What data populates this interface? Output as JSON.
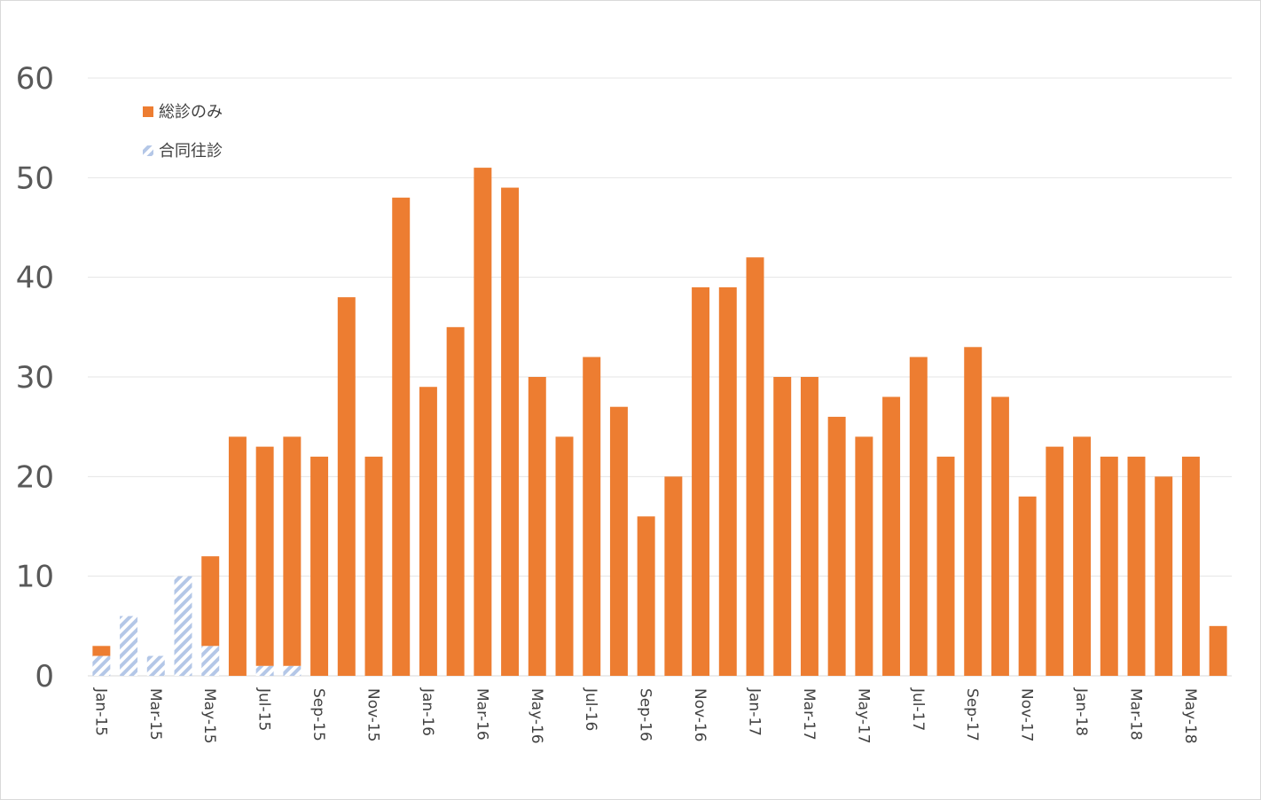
{
  "chart_data": {
    "type": "bar",
    "stacked": true,
    "title": "",
    "xlabel": "",
    "ylabel": "",
    "ylim": [
      0,
      60
    ],
    "yticks": [
      0,
      10,
      20,
      30,
      40,
      50,
      60
    ],
    "grid": true,
    "legend_position": "top-left",
    "categories": [
      "Jan-15",
      "Feb-15",
      "Mar-15",
      "Apr-15",
      "May-15",
      "Jun-15",
      "Jul-15",
      "Aug-15",
      "Sep-15",
      "Oct-15",
      "Nov-15",
      "Dec-15",
      "Jan-16",
      "Feb-16",
      "Mar-16",
      "Apr-16",
      "May-16",
      "Jun-16",
      "Jul-16",
      "Aug-16",
      "Sep-16",
      "Oct-16",
      "Nov-16",
      "Dec-16",
      "Jan-17",
      "Feb-17",
      "Mar-17",
      "Apr-17",
      "May-17",
      "Jun-17",
      "Jul-17",
      "Aug-17",
      "Sep-17",
      "Oct-17",
      "Nov-17",
      "Dec-17",
      "Jan-18",
      "Feb-18",
      "Mar-18",
      "Apr-18",
      "May-18",
      "Jun-18"
    ],
    "tick_labels": [
      "Jan-15",
      "",
      "Mar-15",
      "",
      "May-15",
      "",
      "Jul-15",
      "",
      "Sep-15",
      "",
      "Nov-15",
      "",
      "Jan-16",
      "",
      "Mar-16",
      "",
      "May-16",
      "",
      "Jul-16",
      "",
      "Sep-16",
      "",
      "Nov-16",
      "",
      "Jan-17",
      "",
      "Mar-17",
      "",
      "May-17",
      "",
      "Jul-17",
      "",
      "Sep-17",
      "",
      "Nov-17",
      "",
      "Jan-18",
      "",
      "Mar-18",
      "",
      "May-18",
      ""
    ],
    "series": [
      {
        "name": "合同往診",
        "color": "#b4c7e7",
        "pattern": "diagonal-hatch",
        "values": [
          2,
          6,
          2,
          10,
          3,
          0,
          1,
          1,
          0,
          0,
          0,
          0,
          0,
          0,
          0,
          0,
          0,
          0,
          0,
          0,
          0,
          0,
          0,
          0,
          0,
          0,
          0,
          0,
          0,
          0,
          0,
          0,
          0,
          0,
          0,
          0,
          0,
          0,
          0,
          0,
          0,
          0
        ]
      },
      {
        "name": "総診のみ",
        "color": "#ed7d31",
        "pattern": "solid",
        "values": [
          1,
          0,
          0,
          0,
          9,
          24,
          22,
          23,
          22,
          38,
          22,
          48,
          29,
          35,
          51,
          49,
          30,
          24,
          32,
          27,
          16,
          20,
          39,
          39,
          42,
          30,
          30,
          26,
          24,
          28,
          32,
          22,
          33,
          28,
          18,
          23,
          24,
          22,
          22,
          20,
          22,
          5
        ]
      }
    ]
  }
}
